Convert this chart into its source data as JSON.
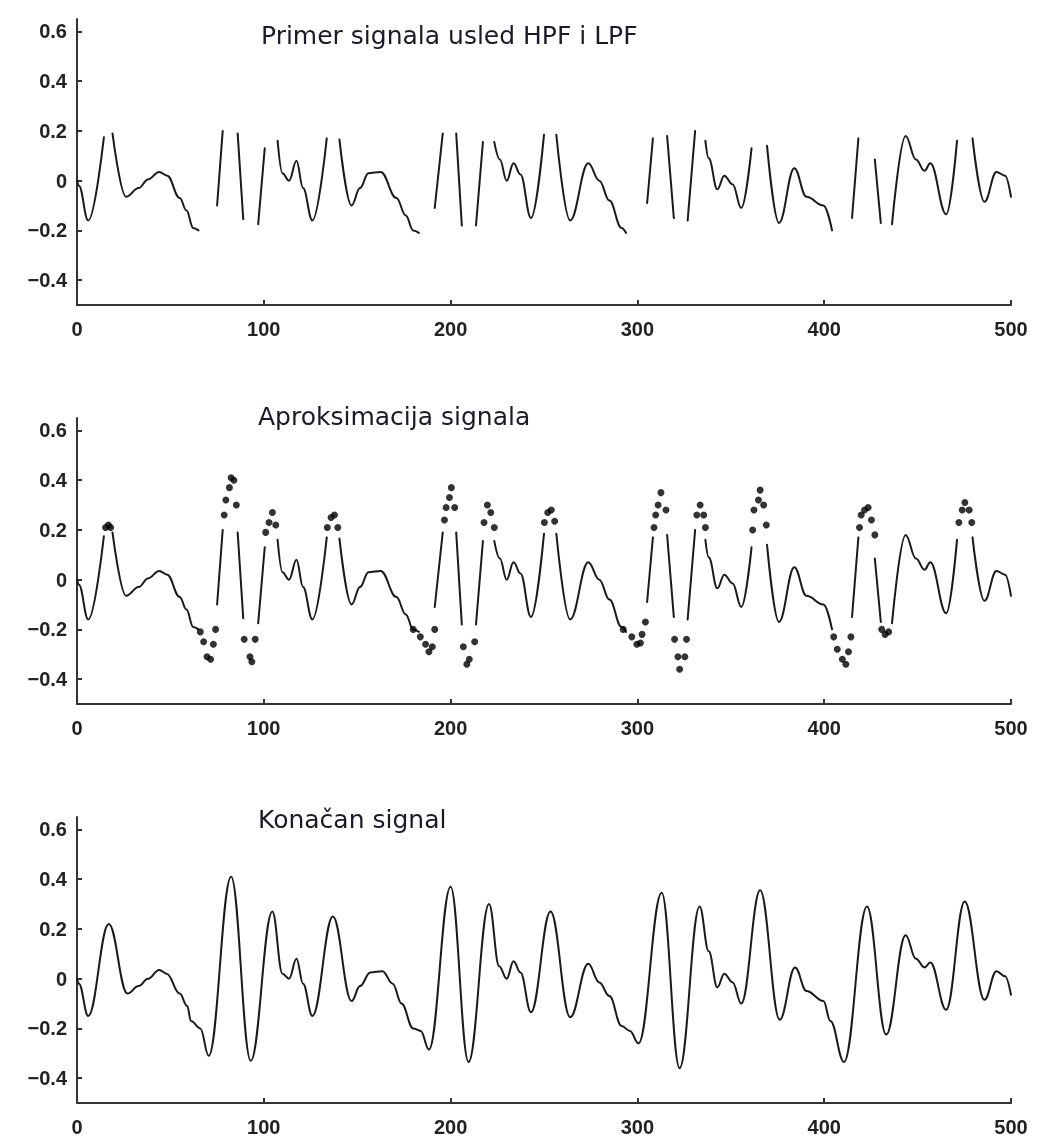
{
  "chart_data": [
    {
      "type": "line",
      "title": "Primer signala usled HPF i LPF",
      "color": "#1a1a1a",
      "marker": "none",
      "xlim": [
        0,
        500
      ],
      "xticks": [
        0,
        100,
        200,
        300,
        400,
        500
      ],
      "ylim": [
        -0.5,
        0.65
      ],
      "yticks": [
        -0.4,
        -0.2,
        0,
        0.2,
        0.4,
        0.6
      ],
      "x": [
        0,
        1,
        6,
        14.4,
        16.5,
        19,
        26.3,
        33,
        38,
        44,
        48.3,
        55,
        58.6,
        62.2,
        65,
        70,
        75,
        78,
        82,
        86,
        89,
        93,
        97,
        100.5,
        104,
        107.4,
        110,
        113.5,
        117.5,
        121,
        126,
        133.7,
        137,
        140.5,
        147,
        151.5,
        156,
        162.6,
        171,
        176,
        180,
        183,
        188,
        191.5,
        195.8,
        200,
        203,
        206,
        210,
        213.6,
        217.3,
        220,
        223.4,
        226.4,
        230,
        233.7,
        237.4,
        243,
        250,
        253,
        256.6,
        264,
        273.7,
        279.6,
        285,
        291.5,
        293.9,
        300,
        305.2,
        308.3,
        312,
        315.9,
        319.5,
        323,
        326.9,
        330.9,
        333,
        336.4,
        338.2,
        342.8,
        346.5,
        351,
        355.6,
        361.1,
        365,
        369.4,
        375.8,
        384,
        390.5,
        399.6,
        404.2,
        410,
        414.9,
        418.3,
        423,
        427.1,
        430.3,
        433,
        436.3,
        443.6,
        449.1,
        453.7,
        456.8,
        465.3,
        471.1,
        475,
        479.4,
        485.8,
        492.2,
        496.8,
        500
      ],
      "values": [
        0,
        -0.02,
        -0.16,
        0.175,
        null,
        0.19,
        -0.065,
        -0.03,
        0.005,
        0.035,
        0.02,
        -0.07,
        -0.12,
        -0.19,
        -0.2,
        null,
        -0.1,
        0.2,
        null,
        0.19,
        -0.155,
        null,
        -0.175,
        0.13,
        null,
        0.16,
        0.03,
        0,
        0.08,
        -0.03,
        -0.16,
        0.17,
        null,
        0.165,
        -0.1,
        -0.03,
        0.03,
        0.035,
        -0.07,
        -0.14,
        -0.2,
        -0.21,
        null,
        -0.11,
        0.19,
        null,
        0.19,
        -0.18,
        null,
        -0.18,
        0.155,
        null,
        0.155,
        0.085,
        0,
        0.07,
        0.025,
        -0.15,
        0.185,
        null,
        0.185,
        -0.16,
        0.07,
        0,
        -0.08,
        -0.19,
        -0.21,
        null,
        -0.09,
        0.17,
        null,
        0.18,
        -0.15,
        null,
        -0.16,
        0.2,
        null,
        0.16,
        0.09,
        -0.035,
        0.02,
        -0.015,
        -0.11,
        0.13,
        null,
        0.14,
        -0.17,
        0.05,
        -0.065,
        -0.1,
        -0.2,
        null,
        -0.15,
        0.17,
        null,
        0.085,
        -0.17,
        null,
        -0.175,
        0.18,
        0.085,
        0.04,
        0.07,
        -0.135,
        0.16,
        null,
        0.17,
        -0.085,
        0.035,
        0.02,
        -0.065
      ]
    },
    {
      "type": "line",
      "title": "Aproksimacija signala",
      "xlim": [
        0,
        500
      ],
      "xticks": [
        0,
        100,
        200,
        300,
        400,
        500
      ],
      "ylim": [
        -0.5,
        0.65
      ],
      "yticks": [
        -0.4,
        -0.2,
        0,
        0.2,
        0.4,
        0.6
      ],
      "series": [
        {
          "type": "line",
          "color": "#1a1a1a",
          "marker": "none",
          "x": [
            0,
            1,
            6,
            14.4,
            16.5,
            19,
            26.3,
            33,
            38,
            44,
            48.3,
            55,
            58.6,
            62.2,
            65,
            70,
            75,
            78,
            82,
            86,
            89,
            93,
            97,
            100.5,
            104,
            107.4,
            110,
            113.5,
            117.5,
            121,
            126,
            133.7,
            137,
            140.5,
            147,
            151.5,
            156,
            162.6,
            171,
            176,
            180,
            183,
            188,
            191.5,
            195.8,
            200,
            203,
            206,
            210,
            213.6,
            217.3,
            220,
            223.4,
            226.4,
            230,
            233.7,
            237.4,
            243,
            250,
            253,
            256.6,
            264,
            273.7,
            279.6,
            285,
            291.5,
            293.9,
            300,
            305.2,
            308.3,
            312,
            315.9,
            319.5,
            323,
            326.9,
            330.9,
            333,
            336.4,
            338.2,
            342.8,
            346.5,
            351,
            355.6,
            361.1,
            365,
            369.4,
            375.8,
            384,
            390.5,
            399.6,
            404.2,
            410,
            414.9,
            418.3,
            423,
            427.1,
            430.3,
            433,
            436.3,
            443.6,
            449.1,
            453.7,
            456.8,
            465.3,
            471.1,
            475,
            479.4,
            485.8,
            492.2,
            496.8,
            500
          ],
          "values": [
            0,
            -0.02,
            -0.16,
            0.175,
            null,
            0.19,
            -0.065,
            -0.03,
            0.005,
            0.035,
            0.02,
            -0.07,
            -0.12,
            -0.19,
            -0.2,
            null,
            -0.1,
            0.2,
            null,
            0.19,
            -0.155,
            null,
            -0.175,
            0.13,
            null,
            0.16,
            0.03,
            0,
            0.08,
            -0.03,
            -0.16,
            0.17,
            null,
            0.165,
            -0.1,
            -0.03,
            0.03,
            0.035,
            -0.07,
            -0.14,
            -0.2,
            -0.21,
            null,
            -0.11,
            0.19,
            null,
            0.19,
            -0.18,
            null,
            -0.18,
            0.155,
            null,
            0.155,
            0.085,
            0,
            0.07,
            0.025,
            -0.15,
            0.185,
            null,
            0.185,
            -0.16,
            0.07,
            0,
            -0.08,
            -0.19,
            -0.21,
            null,
            -0.09,
            0.17,
            null,
            0.18,
            -0.15,
            null,
            -0.16,
            0.2,
            null,
            0.16,
            0.09,
            -0.035,
            0.02,
            -0.015,
            -0.11,
            0.13,
            null,
            0.14,
            -0.17,
            0.05,
            -0.065,
            -0.1,
            -0.2,
            null,
            -0.15,
            0.17,
            null,
            0.085,
            -0.17,
            null,
            -0.175,
            0.18,
            0.085,
            0.04,
            0.07,
            -0.135,
            0.16,
            null,
            0.17,
            -0.085,
            0.035,
            0.02,
            -0.065
          ]
        },
        {
          "type": "scatter",
          "color": "#000000",
          "marker": "circle",
          "x": [
            15.3,
            16.8,
            18,
            66,
            67.8,
            69.6,
            71.5,
            73,
            74.2,
            78.8,
            79.7,
            81.6,
            82.5,
            84,
            85.3,
            89.5,
            92.6,
            93.6,
            95.4,
            101,
            102.8,
            104.6,
            106.4,
            134,
            136,
            137.8,
            139.6,
            180,
            183.8,
            186.6,
            188.4,
            190.2,
            191.5,
            196.7,
            197.6,
            199.4,
            200.4,
            202.2,
            206.8,
            208.7,
            210,
            212.9,
            217.9,
            219.7,
            221.5,
            223.4,
            250.2,
            252,
            253.9,
            255.7,
            292.4,
            297,
            299.7,
            301.6,
            302.5,
            304.3,
            308.9,
            309.8,
            311.1,
            312.6,
            315.3,
            319.9,
            321.7,
            322.6,
            325.4,
            326.3,
            331.8,
            333.6,
            335.5,
            336.4,
            361.7,
            362.4,
            364.8,
            365.7,
            367.6,
            369,
            405.1,
            407,
            409.7,
            411.6,
            413,
            414.3,
            418.9,
            419.8,
            421.6,
            423.5,
            425.3,
            427.1,
            430.8,
            432.6,
            434.5,
            472.1,
            473.9,
            475.3,
            477.6,
            479
          ],
          "values": [
            0.21,
            0.22,
            0.21,
            -0.21,
            -0.25,
            -0.31,
            -0.32,
            -0.26,
            -0.2,
            0.26,
            0.32,
            0.37,
            0.41,
            0.4,
            0.3,
            -0.24,
            -0.31,
            -0.33,
            -0.24,
            0.19,
            0.23,
            0.27,
            0.22,
            0.21,
            0.25,
            0.26,
            0.21,
            -0.2,
            -0.23,
            -0.26,
            -0.29,
            -0.27,
            -0.2,
            0.24,
            0.29,
            0.33,
            0.37,
            0.29,
            -0.27,
            -0.34,
            -0.32,
            -0.25,
            0.23,
            0.3,
            0.27,
            0.21,
            0.23,
            0.27,
            0.28,
            0.235,
            -0.2,
            -0.23,
            -0.26,
            -0.255,
            -0.22,
            -0.17,
            0.21,
            0.26,
            0.3,
            0.35,
            0.28,
            -0.24,
            -0.31,
            -0.36,
            -0.31,
            -0.24,
            0.26,
            0.3,
            0.26,
            0.21,
            0.2,
            0.28,
            0.32,
            0.36,
            0.3,
            0.22,
            -0.23,
            -0.28,
            -0.32,
            -0.34,
            -0.29,
            -0.23,
            0.21,
            0.26,
            0.28,
            0.29,
            0.24,
            0.18,
            -0.2,
            -0.22,
            -0.21,
            0.23,
            0.28,
            0.31,
            0.28,
            0.23
          ]
        }
      ]
    },
    {
      "type": "line",
      "title": "Konačan signal",
      "color": "#1a1a1a",
      "marker": "none",
      "xlim": [
        0,
        500
      ],
      "xticks": [
        0,
        100,
        200,
        300,
        400,
        500
      ],
      "ylim": [
        -0.5,
        0.65
      ],
      "yticks": [
        -0.4,
        -0.2,
        0,
        0.2,
        0.4,
        0.6
      ],
      "x": [
        0,
        1,
        6,
        17,
        27,
        33,
        38,
        44,
        48,
        55,
        59,
        61,
        66,
        70.5,
        82.5,
        93,
        104.6,
        110,
        113.5,
        117.5,
        121,
        126,
        137,
        147,
        151.5,
        157,
        163.5,
        169,
        173.7,
        180,
        184,
        188.4,
        200,
        209.6,
        220.6,
        226,
        230,
        233.7,
        237.4,
        243,
        253.5,
        264,
        273.7,
        279.6,
        285,
        291.5,
        296,
        300.6,
        313,
        322.6,
        333.3,
        338.2,
        342.8,
        346.5,
        351,
        355.6,
        365.7,
        376.2,
        384.4,
        390.5,
        399.6,
        403.3,
        410.6,
        422.9,
        433.2,
        443.6,
        449.1,
        453.7,
        456.8,
        465.3,
        475.2,
        485.8,
        492.2,
        496.8,
        500
      ],
      "values": [
        0,
        -0.02,
        -0.15,
        0.22,
        -0.06,
        -0.03,
        0,
        0.035,
        0.02,
        -0.06,
        -0.11,
        -0.17,
        -0.2,
        -0.31,
        0.41,
        -0.33,
        0.27,
        0.02,
        0,
        0.08,
        -0.02,
        -0.15,
        0.25,
        -0.09,
        -0.03,
        0.025,
        0.03,
        -0.02,
        -0.1,
        -0.2,
        -0.21,
        -0.285,
        0.37,
        -0.335,
        0.3,
        0.05,
        0,
        0.07,
        0.025,
        -0.135,
        0.27,
        -0.155,
        0.06,
        -0.015,
        -0.07,
        -0.19,
        -0.21,
        -0.26,
        0.345,
        -0.36,
        0.29,
        0.11,
        -0.035,
        0.02,
        -0.015,
        -0.1,
        0.355,
        -0.165,
        0.045,
        -0.05,
        -0.09,
        -0.17,
        -0.335,
        0.29,
        -0.225,
        0.175,
        0.08,
        0.045,
        0.065,
        -0.125,
        0.31,
        -0.085,
        0.03,
        0.01,
        -0.065
      ]
    }
  ]
}
